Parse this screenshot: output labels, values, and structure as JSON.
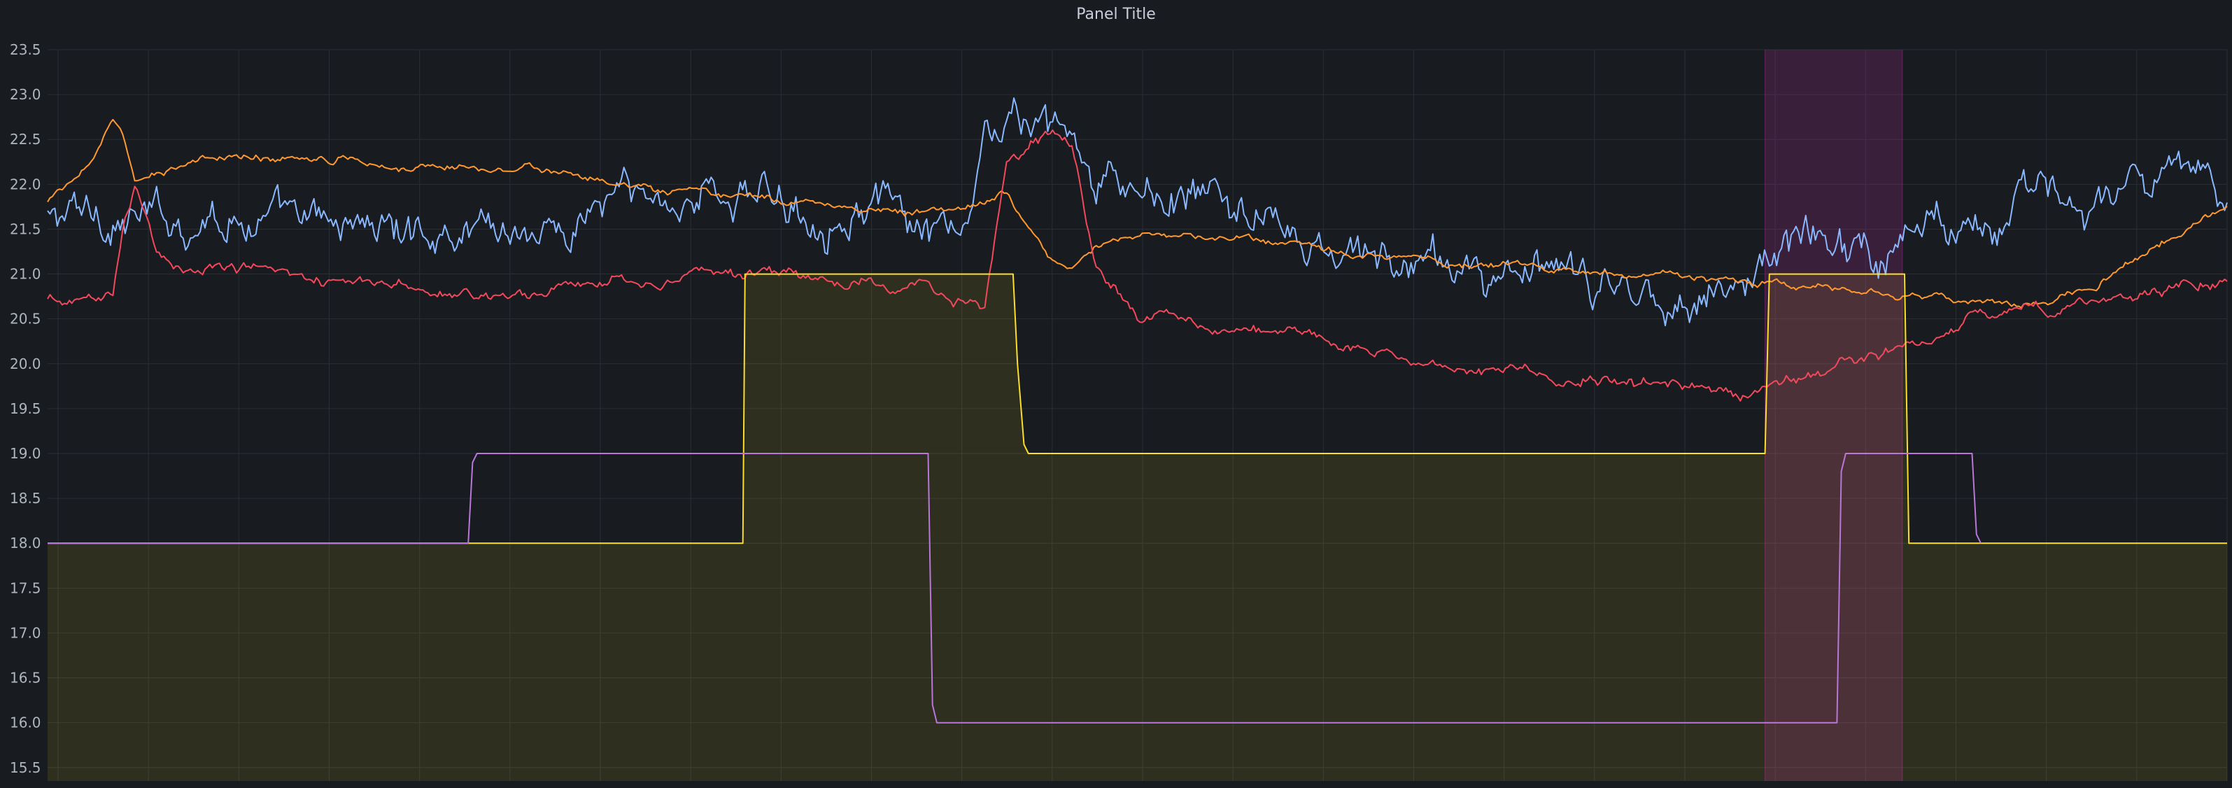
{
  "panel": {
    "title": "Panel Title"
  },
  "colors": {
    "background": "#181b1f",
    "grid": "#2a2e35",
    "text": "#b0b4bd",
    "blue": "#8ab8ff",
    "orange": "#ff9830",
    "red": "#f2495c",
    "yellow": "#fade2a",
    "purple": "#b877d9",
    "region": "#b22c9d"
  },
  "chart_data": {
    "type": "line",
    "title": "Panel Title",
    "xlabel": "",
    "ylabel": "",
    "ylim": [
      15.35,
      23.5
    ],
    "yticks": [
      "15.5",
      "16.0",
      "16.5",
      "17.0",
      "17.5",
      "18.0",
      "18.5",
      "19.0",
      "19.5",
      "20.0",
      "20.5",
      "21.0",
      "21.5",
      "22.0",
      "22.5",
      "23.0",
      "23.5"
    ],
    "xlim": [
      0,
      100
    ],
    "x_tick_labels_visible": false,
    "grid": true,
    "legend": "none",
    "highlight_region": {
      "x": [
        78.8,
        85.1
      ],
      "color": "#b22c9d"
    },
    "series": [
      {
        "key": "blue",
        "color": "#8ab8ff",
        "noise": 0.18,
        "x": [
          0,
          2,
          4,
          6,
          8,
          10,
          12,
          14,
          16,
          18,
          20,
          22,
          24,
          26,
          28,
          30,
          32,
          34,
          36,
          38,
          40,
          42,
          43,
          44,
          45,
          46,
          47,
          48,
          50,
          52,
          54,
          56,
          58,
          60,
          62,
          64,
          66,
          68,
          70,
          72,
          74,
          76,
          78,
          79,
          80,
          81,
          82,
          83,
          84,
          85,
          86,
          88,
          90,
          92,
          94,
          96,
          98,
          100
        ],
        "values": [
          21.6,
          21.7,
          21.6,
          21.6,
          21.7,
          21.6,
          21.5,
          21.6,
          21.5,
          21.5,
          21.6,
          21.5,
          21.5,
          21.9,
          21.8,
          21.9,
          21.9,
          21.8,
          21.7,
          21.8,
          21.4,
          21.3,
          22.5,
          22.7,
          22.6,
          22.6,
          22.5,
          21.9,
          21.9,
          21.8,
          21.8,
          21.6,
          21.2,
          21.2,
          21.1,
          21.1,
          21.0,
          21.0,
          20.9,
          20.8,
          20.8,
          20.8,
          20.9,
          21.2,
          21.3,
          21.45,
          21.5,
          21.35,
          21.2,
          21.35,
          21.6,
          21.7,
          21.8,
          21.8,
          21.85,
          21.9,
          22.0,
          22.0
        ]
      },
      {
        "key": "orange",
        "color": "#ff9830",
        "noise": 0.03,
        "x": [
          0,
          1,
          2,
          3,
          3.5,
          4,
          5,
          6,
          8,
          10,
          12,
          14,
          16,
          18,
          20,
          22,
          24,
          26,
          28,
          30,
          32,
          34,
          36,
          38,
          40,
          42,
          43,
          44,
          45,
          46,
          47,
          48,
          50,
          52,
          54,
          56,
          58,
          60,
          62,
          64,
          66,
          68,
          70,
          72,
          74,
          76,
          78,
          80,
          82,
          84,
          86,
          88,
          90,
          92,
          94,
          96,
          98,
          100
        ],
        "values": [
          21.8,
          22.0,
          22.3,
          22.7,
          22.5,
          22.0,
          22.1,
          22.2,
          22.3,
          22.3,
          22.3,
          22.3,
          22.2,
          22.2,
          22.2,
          22.2,
          22.1,
          22.0,
          21.9,
          21.9,
          21.85,
          21.8,
          21.8,
          21.7,
          21.7,
          21.75,
          21.8,
          21.9,
          21.5,
          21.2,
          21.1,
          21.3,
          21.45,
          21.4,
          21.4,
          21.35,
          21.3,
          21.2,
          21.2,
          21.15,
          21.1,
          21.1,
          21.0,
          21.0,
          21.0,
          20.95,
          20.9,
          20.85,
          20.85,
          20.8,
          20.75,
          20.7,
          20.65,
          20.7,
          20.9,
          21.2,
          21.5,
          21.75
        ]
      },
      {
        "key": "red",
        "color": "#f2495c",
        "noise": 0.05,
        "x": [
          0,
          2,
          3,
          3.5,
          4,
          5,
          6,
          8,
          10,
          12,
          14,
          16,
          18,
          20,
          22,
          24,
          26,
          28,
          30,
          32,
          34,
          36,
          38,
          40,
          42,
          43,
          44,
          45,
          46,
          47,
          48,
          50,
          52,
          54,
          56,
          58,
          60,
          62,
          64,
          66,
          68,
          70,
          72,
          74,
          76,
          78,
          79,
          80,
          82,
          84,
          86,
          88,
          90,
          92,
          94,
          96,
          98,
          100
        ],
        "values": [
          20.7,
          20.7,
          20.8,
          21.6,
          22.0,
          21.2,
          21.1,
          21.1,
          21.1,
          21.0,
          20.9,
          20.85,
          20.8,
          20.75,
          20.8,
          20.9,
          20.95,
          20.95,
          21.0,
          21.0,
          21.0,
          20.9,
          20.85,
          20.85,
          20.7,
          20.6,
          22.2,
          22.4,
          22.6,
          22.5,
          21.1,
          20.55,
          20.5,
          20.4,
          20.35,
          20.3,
          20.2,
          20.1,
          20.0,
          19.95,
          19.9,
          19.85,
          19.8,
          19.75,
          19.7,
          19.65,
          19.7,
          19.8,
          20.0,
          20.1,
          20.2,
          20.5,
          20.6,
          20.6,
          20.7,
          20.8,
          20.9,
          20.9
        ]
      },
      {
        "key": "yellow",
        "color": "#fade2a",
        "noise": 0,
        "fill": true,
        "x": [
          0,
          31.9,
          32,
          44.3,
          44.5,
          44.8,
          45,
          78.8,
          79,
          85.2,
          85.4,
          100
        ],
        "values": [
          18.0,
          18.0,
          21.0,
          21.0,
          20.0,
          19.1,
          19.0,
          19.0,
          21.0,
          21.0,
          18.0,
          18.0
        ]
      },
      {
        "key": "purple",
        "color": "#b877d9",
        "noise": 0,
        "fill": false,
        "x": [
          0,
          19.3,
          19.5,
          19.7,
          40.4,
          40.6,
          40.8,
          82.1,
          82.3,
          82.5,
          88.3,
          88.5,
          88.7
        ],
        "values": [
          18.0,
          18.0,
          18.9,
          19.0,
          19.0,
          16.2,
          16.0,
          16.0,
          18.8,
          19.0,
          19.0,
          18.1,
          18.0
        ]
      }
    ]
  }
}
